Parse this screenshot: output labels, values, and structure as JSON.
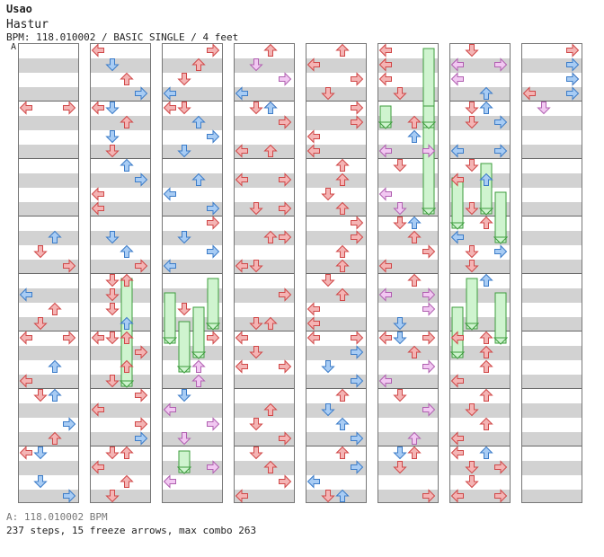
{
  "song": {
    "artist": "Usao",
    "title": "Hastur",
    "meta": "BPM: 118.010002 / BASIC SINGLE / 4 feet",
    "section_marker": "A"
  },
  "footer": {
    "bpm_line": "A: 118.010002 BPM",
    "stats_line": "237 steps, 15 freeze arrows, max combo 263"
  },
  "colors": {
    "red_fill": "#f4b4b4",
    "red_stroke": "#d04848",
    "blue_fill": "#a8ccf4",
    "blue_stroke": "#3c7cc8",
    "pink_fill": "#f2c8f2",
    "pink_stroke": "#b060b0",
    "green_fill": "#cff4cf",
    "green_stroke": "#3c9c3c"
  },
  "columns": [
    {
      "arrows": [
        {
          "l": 0,
          "r": 4,
          "c": "r"
        },
        {
          "l": 3,
          "r": 4,
          "c": "r"
        },
        {
          "l": 2,
          "r": 13,
          "c": "b"
        },
        {
          "l": 1,
          "r": 14,
          "c": "r"
        },
        {
          "l": 3,
          "r": 15,
          "c": "r"
        },
        {
          "l": 0,
          "r": 17,
          "c": "b"
        },
        {
          "l": 2,
          "r": 18,
          "c": "r"
        },
        {
          "l": 1,
          "r": 19,
          "c": "r"
        },
        {
          "l": 0,
          "r": 20,
          "c": "r"
        },
        {
          "l": 3,
          "r": 20,
          "c": "r"
        },
        {
          "l": 2,
          "r": 22,
          "c": "b"
        },
        {
          "l": 0,
          "r": 23,
          "c": "r"
        },
        {
          "l": 1,
          "r": 24,
          "c": "r"
        },
        {
          "l": 2,
          "r": 24,
          "c": "b"
        },
        {
          "l": 3,
          "r": 26,
          "c": "b"
        },
        {
          "l": 2,
          "r": 27,
          "c": "r"
        },
        {
          "l": 0,
          "r": 28,
          "c": "r"
        },
        {
          "l": 1,
          "r": 28,
          "c": "b"
        },
        {
          "l": 1,
          "r": 30,
          "c": "b"
        },
        {
          "l": 3,
          "r": 31,
          "c": "b"
        }
      ],
      "freezes": []
    },
    {
      "arrows": [
        {
          "l": 0,
          "r": 0,
          "c": "r"
        },
        {
          "l": 1,
          "r": 1,
          "c": "b"
        },
        {
          "l": 2,
          "r": 2,
          "c": "r"
        },
        {
          "l": 3,
          "r": 3,
          "c": "b"
        },
        {
          "l": 0,
          "r": 4,
          "c": "r"
        },
        {
          "l": 1,
          "r": 4,
          "c": "b"
        },
        {
          "l": 2,
          "r": 5,
          "c": "r"
        },
        {
          "l": 1,
          "r": 6,
          "c": "b"
        },
        {
          "l": 1,
          "r": 7,
          "c": "r"
        },
        {
          "l": 2,
          "r": 8,
          "c": "b"
        },
        {
          "l": 3,
          "r": 9,
          "c": "b"
        },
        {
          "l": 0,
          "r": 10,
          "c": "r"
        },
        {
          "l": 0,
          "r": 11,
          "c": "r"
        },
        {
          "l": 1,
          "r": 13,
          "c": "b"
        },
        {
          "l": 2,
          "r": 14,
          "c": "b"
        },
        {
          "l": 3,
          "r": 15,
          "c": "r"
        },
        {
          "l": 1,
          "r": 16,
          "c": "r"
        },
        {
          "l": 2,
          "r": 16,
          "c": "r"
        },
        {
          "l": 1,
          "r": 17,
          "c": "r"
        },
        {
          "l": 1,
          "r": 18,
          "c": "r"
        },
        {
          "l": 2,
          "r": 19,
          "c": "b"
        },
        {
          "l": 0,
          "r": 20,
          "c": "r"
        },
        {
          "l": 1,
          "r": 20,
          "c": "r"
        },
        {
          "l": 2,
          "r": 20,
          "c": "r"
        },
        {
          "l": 3,
          "r": 21,
          "c": "r"
        },
        {
          "l": 2,
          "r": 22,
          "c": "r"
        },
        {
          "l": 1,
          "r": 23,
          "c": "r"
        },
        {
          "l": 3,
          "r": 24,
          "c": "r"
        },
        {
          "l": 0,
          "r": 25,
          "c": "r"
        },
        {
          "l": 3,
          "r": 26,
          "c": "r"
        },
        {
          "l": 3,
          "r": 27,
          "c": "b"
        },
        {
          "l": 1,
          "r": 28,
          "c": "r"
        },
        {
          "l": 2,
          "r": 28,
          "c": "r"
        },
        {
          "l": 0,
          "r": 29,
          "c": "r"
        },
        {
          "l": 2,
          "r": 30,
          "c": "r"
        },
        {
          "l": 1,
          "r": 31,
          "c": "r"
        }
      ],
      "freezes": [
        {
          "l": 2,
          "r": 16,
          "len": 2
        }
      ]
    },
    {
      "arrows": [
        {
          "l": 3,
          "r": 0,
          "c": "r"
        },
        {
          "l": 2,
          "r": 1,
          "c": "r"
        },
        {
          "l": 1,
          "r": 2,
          "c": "r"
        },
        {
          "l": 0,
          "r": 3,
          "c": "b"
        },
        {
          "l": 0,
          "r": 4,
          "c": "r"
        },
        {
          "l": 1,
          "r": 4,
          "c": "r"
        },
        {
          "l": 2,
          "r": 5,
          "c": "b"
        },
        {
          "l": 3,
          "r": 6,
          "c": "b"
        },
        {
          "l": 1,
          "r": 7,
          "c": "b"
        },
        {
          "l": 2,
          "r": 9,
          "c": "b"
        },
        {
          "l": 0,
          "r": 10,
          "c": "b"
        },
        {
          "l": 3,
          "r": 11,
          "c": "b"
        },
        {
          "l": 3,
          "r": 12,
          "c": "r"
        },
        {
          "l": 1,
          "r": 13,
          "c": "b"
        },
        {
          "l": 3,
          "r": 14,
          "c": "b"
        },
        {
          "l": 0,
          "r": 15,
          "c": "b"
        },
        {
          "l": 1,
          "r": 18,
          "c": "r"
        },
        {
          "l": 3,
          "r": 20,
          "c": "r"
        },
        {
          "l": 2,
          "r": 22,
          "c": "p"
        },
        {
          "l": 2,
          "r": 23,
          "c": "p"
        },
        {
          "l": 1,
          "r": 24,
          "c": "b"
        },
        {
          "l": 0,
          "r": 25,
          "c": "p"
        },
        {
          "l": 3,
          "r": 26,
          "c": "p"
        },
        {
          "l": 1,
          "r": 27,
          "c": "p"
        },
        {
          "l": 3,
          "r": 29,
          "c": "p"
        },
        {
          "l": 0,
          "r": 30,
          "c": "p"
        }
      ],
      "freezes": [
        {
          "l": 3,
          "r": 16,
          "len": 1
        },
        {
          "l": 0,
          "r": 17,
          "len": 1
        },
        {
          "l": 2,
          "r": 18,
          "len": 1
        },
        {
          "l": 1,
          "r": 19,
          "len": 1
        },
        {
          "l": 1,
          "r": 28,
          "len": 0.5
        }
      ]
    },
    {
      "arrows": [
        {
          "l": 2,
          "r": 0,
          "c": "r"
        },
        {
          "l": 1,
          "r": 1,
          "c": "p"
        },
        {
          "l": 3,
          "r": 2,
          "c": "p"
        },
        {
          "l": 0,
          "r": 3,
          "c": "b"
        },
        {
          "l": 1,
          "r": 4,
          "c": "r"
        },
        {
          "l": 2,
          "r": 4,
          "c": "r"
        },
        {
          "l": 2,
          "r": 4,
          "c": "b"
        },
        {
          "l": 3,
          "r": 5,
          "c": "r"
        },
        {
          "l": 0,
          "r": 7,
          "c": "r"
        },
        {
          "l": 2,
          "r": 7,
          "c": "r"
        },
        {
          "l": 0,
          "r": 9,
          "c": "r"
        },
        {
          "l": 3,
          "r": 9,
          "c": "r"
        },
        {
          "l": 1,
          "r": 11,
          "c": "r"
        },
        {
          "l": 3,
          "r": 11,
          "c": "r"
        },
        {
          "l": 2,
          "r": 13,
          "c": "r"
        },
        {
          "l": 3,
          "r": 13,
          "c": "r"
        },
        {
          "l": 0,
          "r": 15,
          "c": "r"
        },
        {
          "l": 1,
          "r": 15,
          "c": "r"
        },
        {
          "l": 3,
          "r": 17,
          "c": "r"
        },
        {
          "l": 1,
          "r": 19,
          "c": "r"
        },
        {
          "l": 2,
          "r": 19,
          "c": "r"
        },
        {
          "l": 0,
          "r": 20,
          "c": "r"
        },
        {
          "l": 1,
          "r": 21,
          "c": "r"
        },
        {
          "l": 0,
          "r": 22,
          "c": "r"
        },
        {
          "l": 3,
          "r": 22,
          "c": "r"
        },
        {
          "l": 2,
          "r": 25,
          "c": "r"
        },
        {
          "l": 1,
          "r": 26,
          "c": "r"
        },
        {
          "l": 3,
          "r": 27,
          "c": "r"
        },
        {
          "l": 1,
          "r": 28,
          "c": "r"
        },
        {
          "l": 2,
          "r": 29,
          "c": "r"
        },
        {
          "l": 3,
          "r": 30,
          "c": "r"
        },
        {
          "l": 0,
          "r": 31,
          "c": "r"
        }
      ],
      "freezes": []
    },
    {
      "arrows": [
        {
          "l": 2,
          "r": 0,
          "c": "r"
        },
        {
          "l": 0,
          "r": 1,
          "c": "r"
        },
        {
          "l": 3,
          "r": 2,
          "c": "r"
        },
        {
          "l": 1,
          "r": 3,
          "c": "r"
        },
        {
          "l": 3,
          "r": 4,
          "c": "r"
        },
        {
          "l": 3,
          "r": 5,
          "c": "r"
        },
        {
          "l": 0,
          "r": 6,
          "c": "r"
        },
        {
          "l": 0,
          "r": 7,
          "c": "r"
        },
        {
          "l": 2,
          "r": 8,
          "c": "r"
        },
        {
          "l": 2,
          "r": 9,
          "c": "r"
        },
        {
          "l": 1,
          "r": 10,
          "c": "r"
        },
        {
          "l": 2,
          "r": 11,
          "c": "r"
        },
        {
          "l": 3,
          "r": 12,
          "c": "r"
        },
        {
          "l": 3,
          "r": 13,
          "c": "r"
        },
        {
          "l": 2,
          "r": 14,
          "c": "r"
        },
        {
          "l": 2,
          "r": 15,
          "c": "r"
        },
        {
          "l": 1,
          "r": 16,
          "c": "r"
        },
        {
          "l": 2,
          "r": 17,
          "c": "r"
        },
        {
          "l": 0,
          "r": 18,
          "c": "r"
        },
        {
          "l": 0,
          "r": 19,
          "c": "r"
        },
        {
          "l": 0,
          "r": 20,
          "c": "r"
        },
        {
          "l": 3,
          "r": 20,
          "c": "r"
        },
        {
          "l": 3,
          "r": 21,
          "c": "b"
        },
        {
          "l": 1,
          "r": 22,
          "c": "b"
        },
        {
          "l": 3,
          "r": 23,
          "c": "b"
        },
        {
          "l": 2,
          "r": 24,
          "c": "r"
        },
        {
          "l": 1,
          "r": 25,
          "c": "b"
        },
        {
          "l": 2,
          "r": 26,
          "c": "b"
        },
        {
          "l": 3,
          "r": 27,
          "c": "b"
        },
        {
          "l": 2,
          "r": 28,
          "c": "r"
        },
        {
          "l": 3,
          "r": 29,
          "c": "b"
        },
        {
          "l": 0,
          "r": 30,
          "c": "b"
        },
        {
          "l": 2,
          "r": 31,
          "c": "b"
        },
        {
          "l": 1,
          "r": 31,
          "c": "r"
        }
      ],
      "freezes": []
    },
    {
      "arrows": [
        {
          "l": 0,
          "r": 0,
          "c": "r"
        },
        {
          "l": 0,
          "r": 1,
          "c": "r"
        },
        {
          "l": 0,
          "r": 2,
          "c": "r"
        },
        {
          "l": 1,
          "r": 3,
          "c": "r"
        },
        {
          "l": 2,
          "r": 5,
          "c": "r"
        },
        {
          "l": 2,
          "r": 6,
          "c": "b"
        },
        {
          "l": 0,
          "r": 7,
          "c": "p"
        },
        {
          "l": 3,
          "r": 7,
          "c": "p"
        },
        {
          "l": 1,
          "r": 8,
          "c": "r"
        },
        {
          "l": 0,
          "r": 10,
          "c": "p"
        },
        {
          "l": 1,
          "r": 11,
          "c": "p"
        },
        {
          "l": 2,
          "r": 12,
          "c": "b"
        },
        {
          "l": 1,
          "r": 12,
          "c": "r"
        },
        {
          "l": 2,
          "r": 13,
          "c": "r"
        },
        {
          "l": 3,
          "r": 14,
          "c": "r"
        },
        {
          "l": 0,
          "r": 15,
          "c": "r"
        },
        {
          "l": 2,
          "r": 16,
          "c": "r"
        },
        {
          "l": 0,
          "r": 17,
          "c": "p"
        },
        {
          "l": 3,
          "r": 17,
          "c": "p"
        },
        {
          "l": 3,
          "r": 18,
          "c": "p"
        },
        {
          "l": 1,
          "r": 19,
          "c": "b"
        },
        {
          "l": 1,
          "r": 20,
          "c": "b"
        },
        {
          "l": 0,
          "r": 20,
          "c": "r"
        },
        {
          "l": 3,
          "r": 20,
          "c": "r"
        },
        {
          "l": 2,
          "r": 21,
          "c": "r"
        },
        {
          "l": 3,
          "r": 22,
          "c": "p"
        },
        {
          "l": 0,
          "r": 23,
          "c": "p"
        },
        {
          "l": 1,
          "r": 24,
          "c": "r"
        },
        {
          "l": 3,
          "r": 25,
          "c": "p"
        },
        {
          "l": 2,
          "r": 27,
          "c": "p"
        },
        {
          "l": 1,
          "r": 28,
          "c": "b"
        },
        {
          "l": 2,
          "r": 28,
          "c": "r"
        },
        {
          "l": 1,
          "r": 29,
          "c": "r"
        },
        {
          "l": 3,
          "r": 31,
          "c": "r"
        }
      ],
      "freezes": [
        {
          "l": 3,
          "r": 0,
          "len": 3
        },
        {
          "l": 0,
          "r": 4,
          "len": 0.5
        },
        {
          "l": 3,
          "r": 4,
          "len": 0.5
        }
      ]
    },
    {
      "arrows": [
        {
          "l": 1,
          "r": 0,
          "c": "r"
        },
        {
          "l": 3,
          "r": 1,
          "c": "p"
        },
        {
          "l": 0,
          "r": 1,
          "c": "p"
        },
        {
          "l": 0,
          "r": 2,
          "c": "p"
        },
        {
          "l": 2,
          "r": 3,
          "c": "b"
        },
        {
          "l": 2,
          "r": 4,
          "c": "b"
        },
        {
          "l": 1,
          "r": 4,
          "c": "r"
        },
        {
          "l": 3,
          "r": 5,
          "c": "b"
        },
        {
          "l": 1,
          "r": 5,
          "c": "r"
        },
        {
          "l": 0,
          "r": 7,
          "c": "b"
        },
        {
          "l": 3,
          "r": 7,
          "c": "b"
        },
        {
          "l": 1,
          "r": 8,
          "c": "r"
        },
        {
          "l": 2,
          "r": 9,
          "c": "b"
        },
        {
          "l": 0,
          "r": 9,
          "c": "r"
        },
        {
          "l": 1,
          "r": 11,
          "c": "r"
        },
        {
          "l": 2,
          "r": 12,
          "c": "r"
        },
        {
          "l": 0,
          "r": 13,
          "c": "b"
        },
        {
          "l": 1,
          "r": 14,
          "c": "r"
        },
        {
          "l": 3,
          "r": 14,
          "c": "b"
        },
        {
          "l": 1,
          "r": 15,
          "c": "r"
        },
        {
          "l": 2,
          "r": 16,
          "c": "b"
        },
        {
          "l": 0,
          "r": 20,
          "c": "r"
        },
        {
          "l": 2,
          "r": 20,
          "c": "r"
        },
        {
          "l": 2,
          "r": 21,
          "c": "r"
        },
        {
          "l": 2,
          "r": 22,
          "c": "r"
        },
        {
          "l": 0,
          "r": 23,
          "c": "r"
        },
        {
          "l": 2,
          "r": 24,
          "c": "r"
        },
        {
          "l": 1,
          "r": 25,
          "c": "r"
        },
        {
          "l": 2,
          "r": 26,
          "c": "r"
        },
        {
          "l": 0,
          "r": 27,
          "c": "r"
        },
        {
          "l": 0,
          "r": 28,
          "c": "r"
        },
        {
          "l": 2,
          "r": 28,
          "c": "b"
        },
        {
          "l": 1,
          "r": 29,
          "c": "r"
        },
        {
          "l": 3,
          "r": 29,
          "c": "r"
        },
        {
          "l": 1,
          "r": 30,
          "c": "r"
        },
        {
          "l": 0,
          "r": 31,
          "c": "r"
        },
        {
          "l": 3,
          "r": 31,
          "c": "r"
        }
      ],
      "freezes": [
        {
          "l": 2,
          "r": 8,
          "len": 1
        },
        {
          "l": 0,
          "r": 9,
          "len": 1
        },
        {
          "l": 3,
          "r": 10,
          "len": 1
        },
        {
          "l": 1,
          "r": 16,
          "len": 1
        },
        {
          "l": 3,
          "r": 17,
          "len": 1
        },
        {
          "l": 0,
          "r": 18,
          "len": 1
        }
      ]
    },
    {
      "arrows": [
        {
          "l": 3,
          "r": 0,
          "c": "r"
        },
        {
          "l": 3,
          "r": 1,
          "c": "b"
        },
        {
          "l": 3,
          "r": 2,
          "c": "r"
        },
        {
          "l": 3,
          "r": 2,
          "c": "b"
        },
        {
          "l": 3,
          "r": 3,
          "c": "b"
        },
        {
          "l": 0,
          "r": 3,
          "c": "r"
        },
        {
          "l": 1,
          "r": 4,
          "c": "p"
        }
      ],
      "freezes": []
    }
  ]
}
